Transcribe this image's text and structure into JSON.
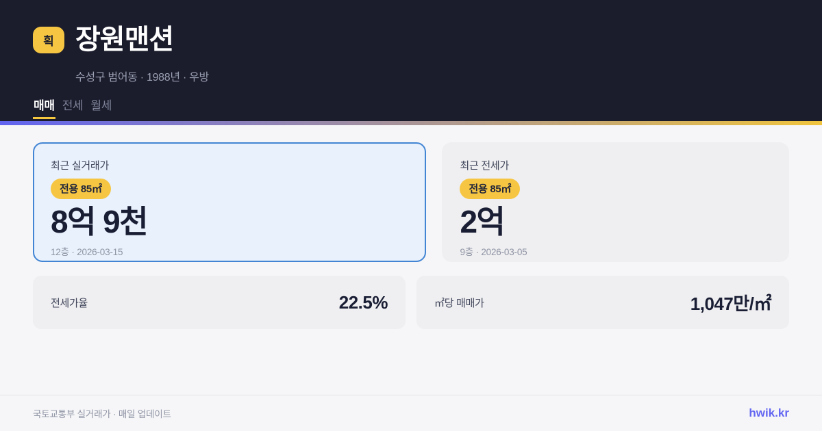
{
  "header": {
    "badge": "획",
    "title": "장원맨션",
    "subtitle": "수성구 범어동 · 1988년 · 우방",
    "tabs": [
      {
        "label": "매매",
        "active": true
      },
      {
        "label": "전세",
        "active": false
      },
      {
        "label": "월세",
        "active": false
      }
    ]
  },
  "cards": {
    "sale": {
      "label": "최근 실거래가",
      "area_badge": "전용 85㎡",
      "value": "8억 9천",
      "detail": "12층 · 2026-03-15"
    },
    "jeonse": {
      "label": "최근 전세가",
      "area_badge": "전용 85㎡",
      "value": "2억",
      "detail": "9층 · 2026-03-05"
    }
  },
  "stats": [
    {
      "label": "전세가율",
      "value": "22.5%"
    },
    {
      "label": "㎡당 매매가",
      "value": "1,047만/㎡"
    }
  ],
  "footer": {
    "source": "국토교통부 실거래가 · 매일 업데이트",
    "brand": "hwik.kr"
  },
  "colors": {
    "header_bg": "#1b1c2c",
    "accent_yellow": "#f6c643",
    "highlight_border_blue": "#4285d4",
    "highlight_card_bg": "#e8f1fc",
    "brand_indigo": "#6366f1",
    "gradient_start": "#6164f0",
    "gradient_end": "#f0c43e",
    "value_text": "#1a1e34"
  }
}
